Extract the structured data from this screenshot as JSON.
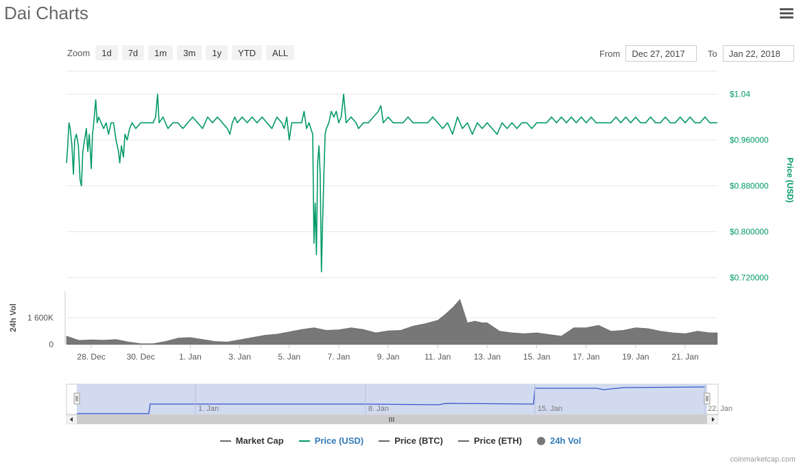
{
  "title": "Dai Charts",
  "zoom": {
    "label": "Zoom",
    "buttons": [
      "1d",
      "7d",
      "1m",
      "3m",
      "1y",
      "YTD",
      "ALL"
    ]
  },
  "range": {
    "from_label": "From",
    "from_value": "Dec 27, 2017",
    "to_label": "To",
    "to_value": "Jan 22, 2018"
  },
  "legend": [
    {
      "label": "Market Cap",
      "color": "#666666",
      "marker": "line"
    },
    {
      "label": "Price (USD)",
      "color": "#009966",
      "marker": "line",
      "active": true
    },
    {
      "label": "Price (BTC)",
      "color": "#666666",
      "marker": "line"
    },
    {
      "label": "Price (ETH)",
      "color": "#666666",
      "marker": "line"
    },
    {
      "label": "24h Vol",
      "color": "#777777",
      "marker": "dot",
      "active": true
    }
  ],
  "credits": "coinmarketcap.com",
  "colors": {
    "price": "#009966",
    "volume": "#777777",
    "navigator_fill": "#cdd6ee",
    "navigator_line": "#3355cc",
    "grid": "#e6e6e6"
  },
  "chart_data": [
    {
      "type": "line",
      "name": "price",
      "x_unit": "days since Dec 27, 2017",
      "y_axis_title": "Price (USD)",
      "y_ticks": [
        {
          "value": 1.04,
          "label": "$1.04"
        },
        {
          "value": 0.96,
          "label": "$0.960000"
        },
        {
          "value": 0.88,
          "label": "$0.880000"
        },
        {
          "value": 0.8,
          "label": "$0.800000"
        },
        {
          "value": 0.72,
          "label": "$0.720000"
        }
      ],
      "ylim": [
        0.7,
        1.08
      ],
      "series": [
        {
          "name": "Price (USD)",
          "points": [
            [
              0.0,
              0.92
            ],
            [
              0.05,
              0.95
            ],
            [
              0.1,
              0.99
            ],
            [
              0.15,
              0.98
            ],
            [
              0.22,
              0.95
            ],
            [
              0.28,
              0.9
            ],
            [
              0.33,
              0.96
            ],
            [
              0.4,
              0.97
            ],
            [
              0.48,
              0.95
            ],
            [
              0.55,
              0.89
            ],
            [
              0.6,
              0.88
            ],
            [
              0.66,
              0.94
            ],
            [
              0.73,
              0.96
            ],
            [
              0.8,
              0.98
            ],
            [
              0.86,
              0.94
            ],
            [
              0.92,
              0.97
            ],
            [
              1.0,
              0.91
            ],
            [
              1.05,
              0.97
            ],
            [
              1.1,
              0.99
            ],
            [
              1.18,
              1.03
            ],
            [
              1.24,
              0.99
            ],
            [
              1.3,
              1.0
            ],
            [
              1.4,
              0.99
            ],
            [
              1.5,
              0.98
            ],
            [
              1.6,
              0.99
            ],
            [
              1.7,
              0.97
            ],
            [
              1.8,
              0.99
            ],
            [
              1.9,
              0.99
            ],
            [
              2.0,
              0.96
            ],
            [
              2.1,
              0.94
            ],
            [
              2.15,
              0.92
            ],
            [
              2.22,
              0.95
            ],
            [
              2.3,
              0.93
            ],
            [
              2.36,
              0.97
            ],
            [
              2.45,
              0.96
            ],
            [
              2.55,
              0.98
            ],
            [
              2.65,
              0.99
            ],
            [
              2.8,
              0.98
            ],
            [
              3.0,
              0.99
            ],
            [
              3.2,
              0.99
            ],
            [
              3.5,
              0.99
            ],
            [
              3.6,
              1.0
            ],
            [
              3.68,
              1.04
            ],
            [
              3.74,
              0.99
            ],
            [
              3.9,
              1.0
            ],
            [
              4.1,
              0.98
            ],
            [
              4.3,
              0.99
            ],
            [
              4.5,
              0.99
            ],
            [
              4.7,
              0.98
            ],
            [
              4.9,
              0.99
            ],
            [
              5.1,
              1.0
            ],
            [
              5.3,
              0.99
            ],
            [
              5.5,
              0.98
            ],
            [
              5.7,
              1.0
            ],
            [
              5.9,
              0.99
            ],
            [
              6.1,
              1.0
            ],
            [
              6.3,
              0.99
            ],
            [
              6.5,
              0.98
            ],
            [
              6.6,
              0.97
            ],
            [
              6.7,
              0.99
            ],
            [
              6.8,
              1.0
            ],
            [
              6.9,
              0.99
            ],
            [
              7.1,
              1.0
            ],
            [
              7.3,
              0.99
            ],
            [
              7.5,
              1.0
            ],
            [
              7.7,
              0.99
            ],
            [
              7.9,
              1.0
            ],
            [
              8.1,
              0.99
            ],
            [
              8.3,
              0.98
            ],
            [
              8.5,
              1.0
            ],
            [
              8.7,
              0.99
            ],
            [
              8.8,
              0.98
            ],
            [
              8.9,
              1.0
            ],
            [
              9.0,
              0.96
            ],
            [
              9.1,
              0.99
            ],
            [
              9.3,
              0.99
            ],
            [
              9.5,
              0.99
            ],
            [
              9.6,
              1.01
            ],
            [
              9.7,
              0.98
            ],
            [
              9.8,
              0.99
            ],
            [
              9.95,
              0.97
            ],
            [
              10.0,
              0.78
            ],
            [
              10.05,
              0.85
            ],
            [
              10.1,
              0.76
            ],
            [
              10.15,
              0.92
            ],
            [
              10.2,
              0.95
            ],
            [
              10.25,
              0.9
            ],
            [
              10.3,
              0.73
            ],
            [
              10.35,
              0.82
            ],
            [
              10.4,
              0.9
            ],
            [
              10.45,
              0.97
            ],
            [
              10.5,
              0.98
            ],
            [
              10.6,
              0.99
            ],
            [
              10.7,
              1.01
            ],
            [
              10.8,
              1.0
            ],
            [
              10.9,
              1.01
            ],
            [
              11.0,
              0.99
            ],
            [
              11.1,
              1.0
            ],
            [
              11.2,
              1.04
            ],
            [
              11.3,
              0.99
            ],
            [
              11.5,
              1.0
            ],
            [
              11.7,
              0.99
            ],
            [
              11.8,
              0.98
            ],
            [
              12.0,
              0.99
            ],
            [
              12.2,
              0.99
            ],
            [
              12.4,
              1.0
            ],
            [
              12.6,
              1.01
            ],
            [
              12.7,
              1.02
            ],
            [
              12.8,
              0.99
            ],
            [
              13.0,
              1.0
            ],
            [
              13.2,
              0.99
            ],
            [
              13.4,
              0.99
            ],
            [
              13.6,
              0.99
            ],
            [
              13.8,
              1.0
            ],
            [
              14.0,
              0.99
            ],
            [
              14.2,
              0.99
            ],
            [
              14.4,
              0.99
            ],
            [
              14.6,
              0.99
            ],
            [
              14.8,
              1.0
            ],
            [
              15.0,
              0.99
            ],
            [
              15.2,
              0.98
            ],
            [
              15.4,
              0.99
            ],
            [
              15.6,
              0.97
            ],
            [
              15.8,
              1.0
            ],
            [
              16.0,
              0.98
            ],
            [
              16.2,
              0.99
            ],
            [
              16.4,
              0.97
            ],
            [
              16.6,
              0.99
            ],
            [
              16.8,
              0.98
            ],
            [
              17.0,
              0.99
            ],
            [
              17.2,
              0.98
            ],
            [
              17.4,
              0.97
            ],
            [
              17.6,
              0.99
            ],
            [
              17.8,
              0.98
            ],
            [
              18.0,
              0.99
            ],
            [
              18.2,
              0.98
            ],
            [
              18.4,
              0.99
            ],
            [
              18.6,
              0.99
            ],
            [
              18.8,
              0.98
            ],
            [
              19.0,
              0.99
            ],
            [
              19.2,
              0.99
            ],
            [
              19.4,
              0.99
            ],
            [
              19.6,
              1.0
            ],
            [
              19.8,
              0.99
            ],
            [
              20.0,
              1.0
            ],
            [
              20.2,
              0.99
            ],
            [
              20.4,
              1.0
            ],
            [
              20.6,
              0.99
            ],
            [
              20.8,
              1.0
            ],
            [
              21.0,
              0.99
            ],
            [
              21.2,
              1.0
            ],
            [
              21.4,
              0.99
            ],
            [
              21.6,
              0.99
            ],
            [
              21.8,
              0.99
            ],
            [
              22.0,
              0.99
            ],
            [
              22.2,
              1.0
            ],
            [
              22.4,
              0.99
            ],
            [
              22.6,
              1.0
            ],
            [
              22.8,
              0.99
            ],
            [
              23.0,
              1.0
            ],
            [
              23.2,
              0.99
            ],
            [
              23.4,
              0.99
            ],
            [
              23.6,
              1.0
            ],
            [
              23.8,
              0.99
            ],
            [
              24.0,
              0.99
            ],
            [
              24.2,
              1.0
            ],
            [
              24.4,
              0.99
            ],
            [
              24.6,
              0.99
            ],
            [
              24.8,
              1.0
            ],
            [
              25.0,
              0.99
            ],
            [
              25.2,
              1.0
            ],
            [
              25.4,
              0.99
            ],
            [
              25.6,
              0.99
            ],
            [
              25.8,
              1.0
            ],
            [
              26.0,
              0.99
            ],
            [
              26.3,
              0.99
            ]
          ]
        }
      ]
    },
    {
      "type": "bar",
      "name": "volume",
      "y_axis_title": "24h Vol",
      "y_ticks": [
        {
          "value": 0,
          "label": "0"
        },
        {
          "value": 1600000,
          "label": "1 600K"
        }
      ],
      "ylim": [
        0,
        3200000
      ],
      "x_ticks": [
        {
          "day": 1,
          "label": "28. Dec"
        },
        {
          "day": 3,
          "label": "30. Dec"
        },
        {
          "day": 5,
          "label": "1. Jan"
        },
        {
          "day": 7,
          "label": "3. Jan"
        },
        {
          "day": 9,
          "label": "5. Jan"
        },
        {
          "day": 11,
          "label": "7. Jan"
        },
        {
          "day": 13,
          "label": "9. Jan"
        },
        {
          "day": 15,
          "label": "11. Jan"
        },
        {
          "day": 17,
          "label": "13. Jan"
        },
        {
          "day": 19,
          "label": "15. Jan"
        },
        {
          "day": 21,
          "label": "17. Jan"
        },
        {
          "day": 23,
          "label": "19. Jan"
        },
        {
          "day": 25,
          "label": "21. Jan"
        }
      ],
      "series": [
        {
          "name": "24h Vol",
          "days": [
            0,
            0.5,
            1,
            1.5,
            2,
            2.5,
            3,
            3.5,
            4,
            4.5,
            5,
            5.5,
            6,
            6.5,
            7,
            7.5,
            8,
            8.5,
            9,
            9.5,
            10,
            10.5,
            11,
            11.5,
            12,
            12.5,
            13,
            13.5,
            14,
            14.5,
            15,
            15.3,
            15.6,
            15.9,
            16.2,
            16.5,
            16.8,
            17,
            17.5,
            18,
            18.5,
            19,
            19.5,
            20,
            20.5,
            21,
            21.5,
            22,
            22.5,
            23,
            23.5,
            24,
            24.5,
            25,
            25.5,
            26,
            26.3
          ],
          "values": [
            500000,
            250000,
            280000,
            260000,
            300000,
            150000,
            50000,
            50000,
            180000,
            380000,
            420000,
            300000,
            180000,
            150000,
            280000,
            420000,
            550000,
            620000,
            760000,
            900000,
            1000000,
            850000,
            880000,
            1000000,
            900000,
            700000,
            820000,
            850000,
            1100000,
            1250000,
            1450000,
            1800000,
            2200000,
            2700000,
            1300000,
            1400000,
            1300000,
            1300000,
            800000,
            700000,
            650000,
            700000,
            600000,
            500000,
            1000000,
            1000000,
            1150000,
            800000,
            850000,
            1000000,
            950000,
            800000,
            700000,
            650000,
            800000,
            700000,
            700000
          ]
        }
      ]
    },
    {
      "type": "area",
      "name": "navigator",
      "x_ticks": [
        {
          "label": "1. Jan"
        },
        {
          "label": "8. Jan"
        },
        {
          "label": "15. Jan"
        },
        {
          "label": "22. Jan"
        }
      ]
    }
  ]
}
